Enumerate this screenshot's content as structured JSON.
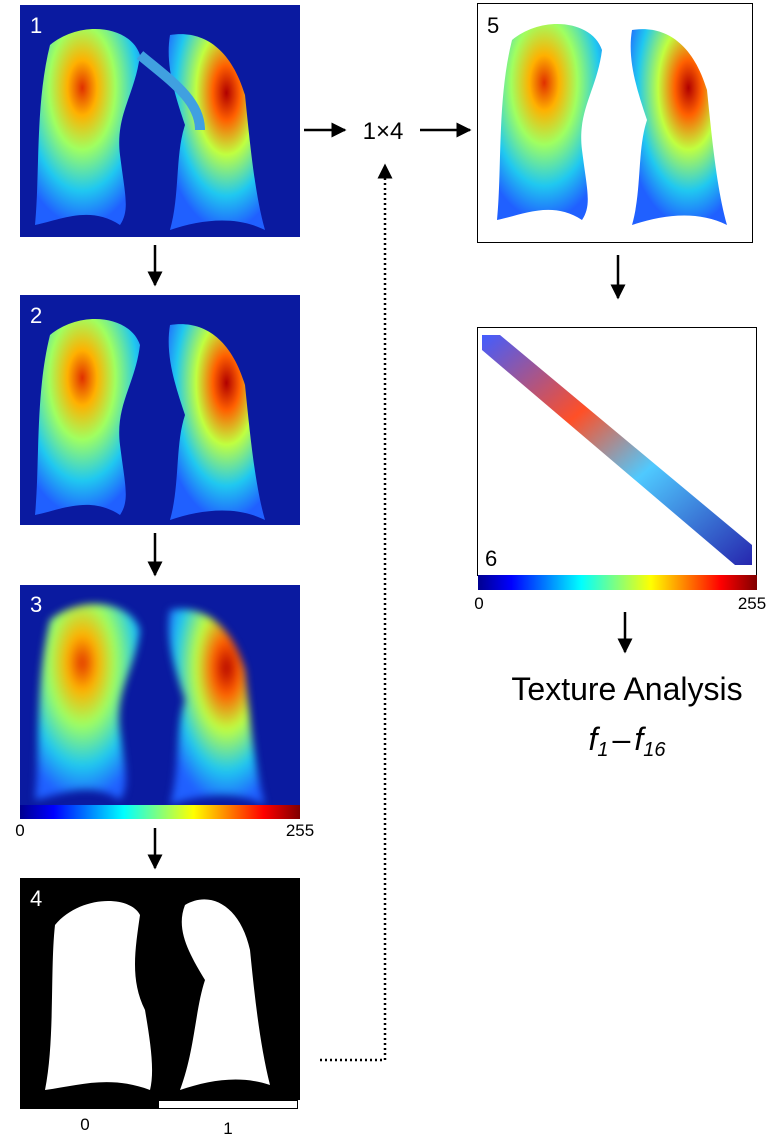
{
  "panels": [
    {
      "label": "1"
    },
    {
      "label": "2"
    },
    {
      "label": "3"
    },
    {
      "label": "4"
    },
    {
      "label": "5"
    },
    {
      "label": "6"
    }
  ],
  "colorbar_3": {
    "min": "0",
    "max": "255"
  },
  "mask_bar": {
    "left": "0",
    "right": "1"
  },
  "colorbar_6": {
    "min": "0",
    "max": "255"
  },
  "operation": "1×4",
  "output": {
    "title": "Texture Analysis",
    "formula": {
      "f1": "f",
      "sub1": "1",
      "dash": "–",
      "f2": "f",
      "sub2": "16"
    }
  }
}
